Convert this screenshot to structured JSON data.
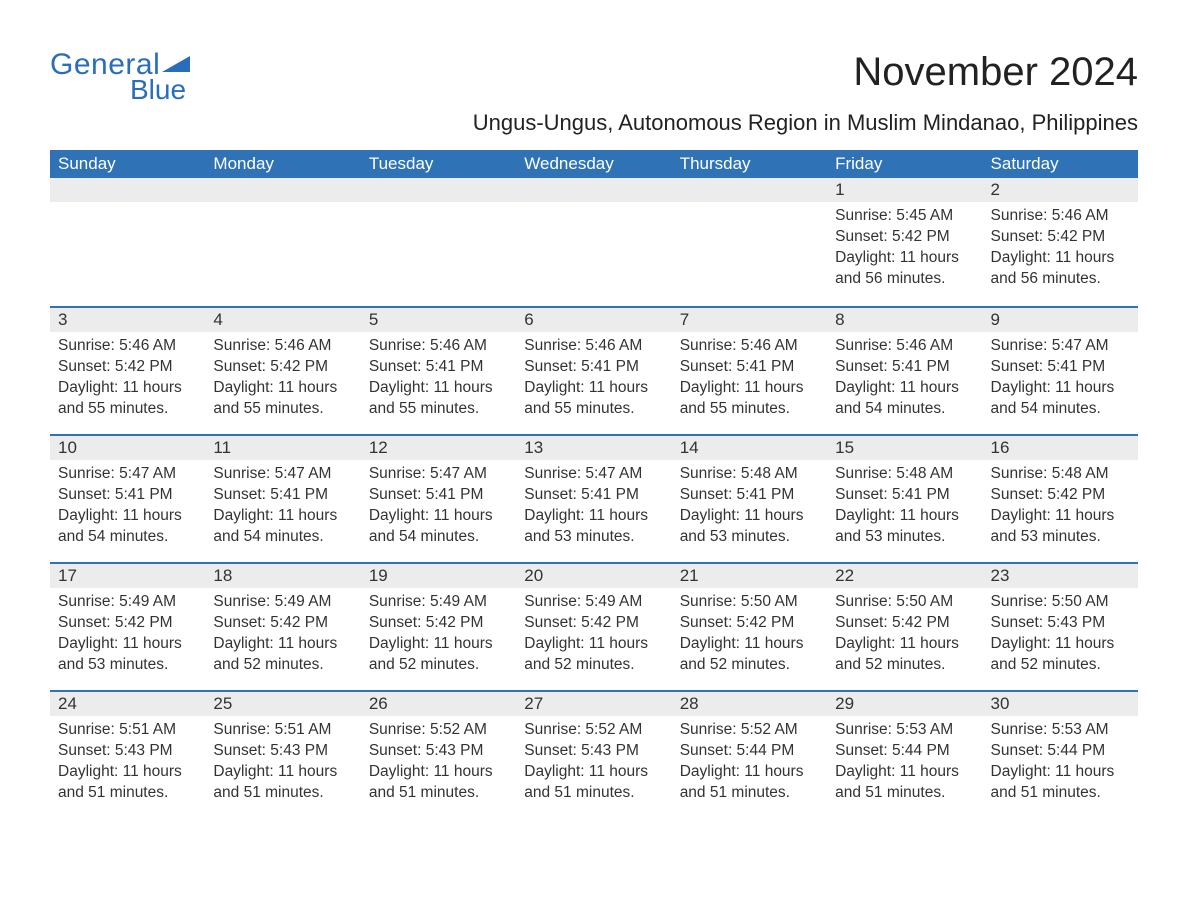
{
  "brand": {
    "word1": "General",
    "word2": "Blue",
    "flag_color": "#2a6ebb",
    "text_color": "#2a6ebb"
  },
  "title": "November 2024",
  "subtitle": "Ungus-Ungus, Autonomous Region in Muslim Mindanao, Philippines",
  "colors": {
    "header_bg": "#2f72b6",
    "header_text": "#ffffff",
    "rule": "#2f72b6",
    "daynum_bg": "#ececec",
    "text": "#333333",
    "page_bg": "#ffffff"
  },
  "fonts": {
    "title_size": 40,
    "subtitle_size": 22,
    "head_size": 17,
    "daynum_size": 17,
    "body_size": 15.5
  },
  "weekdays": [
    "Sunday",
    "Monday",
    "Tuesday",
    "Wednesday",
    "Thursday",
    "Friday",
    "Saturday"
  ],
  "labels": {
    "sunrise": "Sunrise:",
    "sunset": "Sunset:",
    "daylight": "Daylight:"
  },
  "weeks": [
    [
      null,
      null,
      null,
      null,
      null,
      {
        "n": "1",
        "sunrise": "5:45 AM",
        "sunset": "5:42 PM",
        "daylight": "11 hours and 56 minutes."
      },
      {
        "n": "2",
        "sunrise": "5:46 AM",
        "sunset": "5:42 PM",
        "daylight": "11 hours and 56 minutes."
      }
    ],
    [
      {
        "n": "3",
        "sunrise": "5:46 AM",
        "sunset": "5:42 PM",
        "daylight": "11 hours and 55 minutes."
      },
      {
        "n": "4",
        "sunrise": "5:46 AM",
        "sunset": "5:42 PM",
        "daylight": "11 hours and 55 minutes."
      },
      {
        "n": "5",
        "sunrise": "5:46 AM",
        "sunset": "5:41 PM",
        "daylight": "11 hours and 55 minutes."
      },
      {
        "n": "6",
        "sunrise": "5:46 AM",
        "sunset": "5:41 PM",
        "daylight": "11 hours and 55 minutes."
      },
      {
        "n": "7",
        "sunrise": "5:46 AM",
        "sunset": "5:41 PM",
        "daylight": "11 hours and 55 minutes."
      },
      {
        "n": "8",
        "sunrise": "5:46 AM",
        "sunset": "5:41 PM",
        "daylight": "11 hours and 54 minutes."
      },
      {
        "n": "9",
        "sunrise": "5:47 AM",
        "sunset": "5:41 PM",
        "daylight": "11 hours and 54 minutes."
      }
    ],
    [
      {
        "n": "10",
        "sunrise": "5:47 AM",
        "sunset": "5:41 PM",
        "daylight": "11 hours and 54 minutes."
      },
      {
        "n": "11",
        "sunrise": "5:47 AM",
        "sunset": "5:41 PM",
        "daylight": "11 hours and 54 minutes."
      },
      {
        "n": "12",
        "sunrise": "5:47 AM",
        "sunset": "5:41 PM",
        "daylight": "11 hours and 54 minutes."
      },
      {
        "n": "13",
        "sunrise": "5:47 AM",
        "sunset": "5:41 PM",
        "daylight": "11 hours and 53 minutes."
      },
      {
        "n": "14",
        "sunrise": "5:48 AM",
        "sunset": "5:41 PM",
        "daylight": "11 hours and 53 minutes."
      },
      {
        "n": "15",
        "sunrise": "5:48 AM",
        "sunset": "5:41 PM",
        "daylight": "11 hours and 53 minutes."
      },
      {
        "n": "16",
        "sunrise": "5:48 AM",
        "sunset": "5:42 PM",
        "daylight": "11 hours and 53 minutes."
      }
    ],
    [
      {
        "n": "17",
        "sunrise": "5:49 AM",
        "sunset": "5:42 PM",
        "daylight": "11 hours and 53 minutes."
      },
      {
        "n": "18",
        "sunrise": "5:49 AM",
        "sunset": "5:42 PM",
        "daylight": "11 hours and 52 minutes."
      },
      {
        "n": "19",
        "sunrise": "5:49 AM",
        "sunset": "5:42 PM",
        "daylight": "11 hours and 52 minutes."
      },
      {
        "n": "20",
        "sunrise": "5:49 AM",
        "sunset": "5:42 PM",
        "daylight": "11 hours and 52 minutes."
      },
      {
        "n": "21",
        "sunrise": "5:50 AM",
        "sunset": "5:42 PM",
        "daylight": "11 hours and 52 minutes."
      },
      {
        "n": "22",
        "sunrise": "5:50 AM",
        "sunset": "5:42 PM",
        "daylight": "11 hours and 52 minutes."
      },
      {
        "n": "23",
        "sunrise": "5:50 AM",
        "sunset": "5:43 PM",
        "daylight": "11 hours and 52 minutes."
      }
    ],
    [
      {
        "n": "24",
        "sunrise": "5:51 AM",
        "sunset": "5:43 PM",
        "daylight": "11 hours and 51 minutes."
      },
      {
        "n": "25",
        "sunrise": "5:51 AM",
        "sunset": "5:43 PM",
        "daylight": "11 hours and 51 minutes."
      },
      {
        "n": "26",
        "sunrise": "5:52 AM",
        "sunset": "5:43 PM",
        "daylight": "11 hours and 51 minutes."
      },
      {
        "n": "27",
        "sunrise": "5:52 AM",
        "sunset": "5:43 PM",
        "daylight": "11 hours and 51 minutes."
      },
      {
        "n": "28",
        "sunrise": "5:52 AM",
        "sunset": "5:44 PM",
        "daylight": "11 hours and 51 minutes."
      },
      {
        "n": "29",
        "sunrise": "5:53 AM",
        "sunset": "5:44 PM",
        "daylight": "11 hours and 51 minutes."
      },
      {
        "n": "30",
        "sunrise": "5:53 AM",
        "sunset": "5:44 PM",
        "daylight": "11 hours and 51 minutes."
      }
    ]
  ]
}
